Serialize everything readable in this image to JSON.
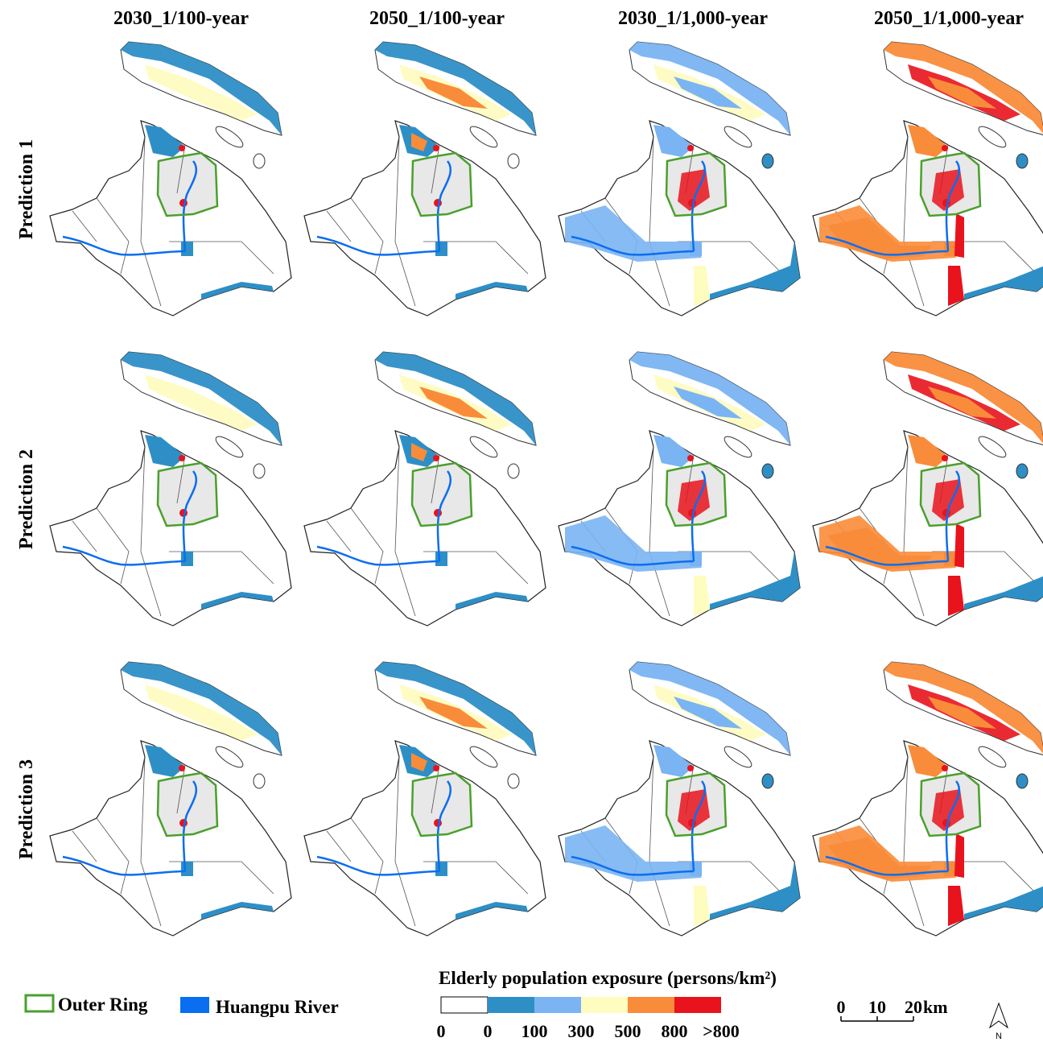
{
  "columns": [
    "2030_1/100-year",
    "2050_1/100-year",
    "2030_1/1,000-year",
    "2050_1/1,000-year"
  ],
  "rows": [
    "Prediction 1",
    "Prediction 2",
    "Prediction 3"
  ],
  "legend": {
    "outer_ring": {
      "label": "Outer Ring",
      "color": "#4aa02c"
    },
    "huangpu": {
      "label": "Huangpu River",
      "color": "#0a6ef0"
    }
  },
  "colorbar": {
    "title": "Elderly population exposure (persons/km²)",
    "colors": [
      "#ffffff",
      "#2e8fc6",
      "#7ab4f2",
      "#fefcbe",
      "#f98c3a",
      "#e8131c"
    ],
    "labels": [
      "0",
      "0",
      "100",
      "300",
      "500",
      "800",
      ">800"
    ]
  },
  "scale_bar": {
    "labels": [
      "0",
      "10",
      "20"
    ],
    "unit": "km"
  },
  "north": "N"
}
